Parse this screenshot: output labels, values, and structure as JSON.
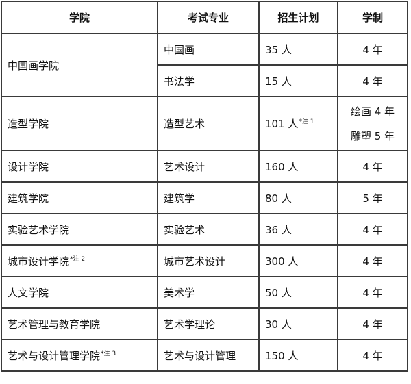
{
  "headers": [
    "学院",
    "考试专业",
    "招生计划",
    "学制"
  ],
  "rows": [
    {
      "college": "中国画学院",
      "college_note": "",
      "major": "中国画",
      "plan": "35 人",
      "plan_note": "",
      "duration": "4 年"
    },
    {
      "college": "",
      "college_note": "",
      "major": "书法学",
      "plan": "15 人",
      "plan_note": "",
      "duration": "4 年"
    },
    {
      "college": "造型学院",
      "college_note": "",
      "major": "造型艺术",
      "plan": "101 人",
      "plan_note": "*注 1",
      "duration": "绘画 4 年",
      "duration2": "雕塑 5 年"
    },
    {
      "college": "设计学院",
      "college_note": "",
      "major": "艺术设计",
      "plan": "160 人",
      "plan_note": "",
      "duration": "4 年"
    },
    {
      "college": "建筑学院",
      "college_note": "",
      "major": "建筑学",
      "plan": "80 人",
      "plan_note": "",
      "duration": "5 年"
    },
    {
      "college": "实验艺术学院",
      "college_note": "",
      "major": "实验艺术",
      "plan": "36 人",
      "plan_note": "",
      "duration": "4 年"
    },
    {
      "college": "城市设计学院",
      "college_note": "*注 2",
      "major": "城市艺术设计",
      "plan": "300 人",
      "plan_note": "",
      "duration": "4 年"
    },
    {
      "college": "人文学院",
      "college_note": "",
      "major": "美术学",
      "plan": "50 人",
      "plan_note": "",
      "duration": "4 年"
    },
    {
      "college": "艺术管理与教育学院",
      "college_note": "",
      "major": "艺术学理论",
      "plan": "30 人",
      "plan_note": "",
      "duration": "4 年"
    },
    {
      "college": "艺术与设计管理学院",
      "college_note": "*注 3",
      "major": "艺术与设计管理",
      "plan": "150 人",
      "plan_note": "",
      "duration": "4 年"
    }
  ]
}
